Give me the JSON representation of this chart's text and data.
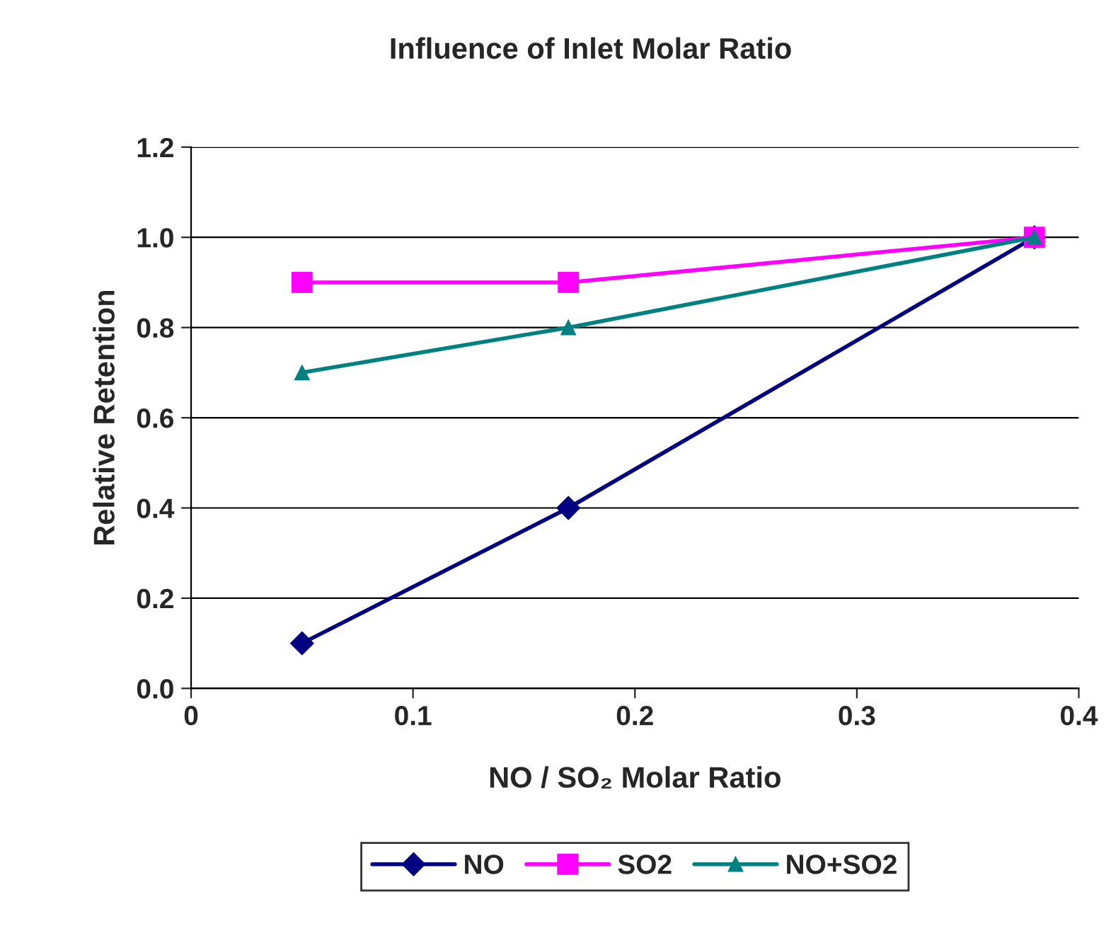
{
  "chart_data": {
    "type": "line",
    "title": "Influence of Inlet Molar Ratio",
    "xlabel": "NO / SO₂ Molar Ratio",
    "ylabel": "Relative Retention",
    "x": [
      0.05,
      0.17,
      0.38
    ],
    "series": [
      {
        "name": "NO",
        "color": "#000080",
        "marker": "diamond",
        "values": [
          0.1,
          0.4,
          1.0
        ]
      },
      {
        "name": "SO2",
        "color": "#ff00ff",
        "marker": "square",
        "values": [
          0.9,
          0.9,
          1.0
        ]
      },
      {
        "name": "NO+SO2",
        "color": "#008080",
        "marker": "triangle",
        "values": [
          0.7,
          0.8,
          1.0
        ]
      }
    ],
    "xlim": [
      0,
      0.4
    ],
    "xticks": [
      0,
      0.1,
      0.2,
      0.3,
      0.4
    ],
    "ylim": [
      0,
      1.2
    ],
    "yticks": [
      {
        "value": 0,
        "label": "0.0"
      },
      0.2,
      0.4,
      0.6,
      0.8,
      {
        "value": 1,
        "label": "1.0"
      },
      1.2
    ],
    "grid": "y",
    "legend": "bottom",
    "line_style": "solid"
  }
}
